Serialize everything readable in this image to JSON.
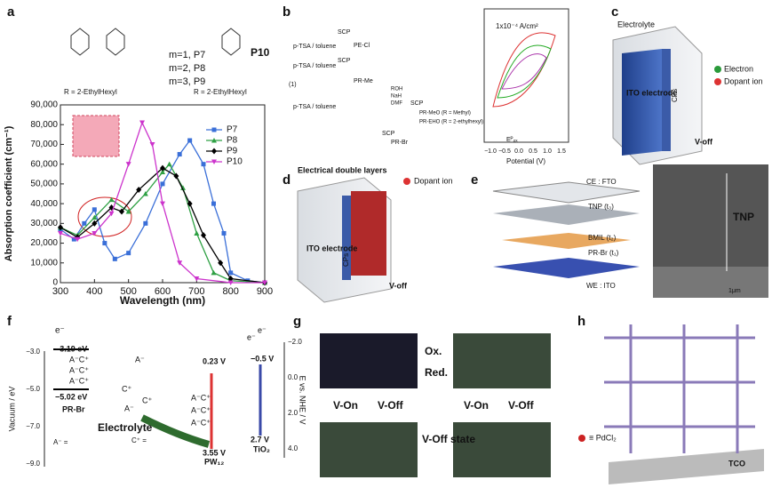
{
  "chart_data": {
    "type": "line",
    "x_label": "Wavelength (nm)",
    "y_label": "Absorption coefficient (cm⁻¹)",
    "annotations": [
      "R = 2-EthylHexyl",
      "R = 2-EthylHexyl",
      "m=1, P7",
      "m=2, P8",
      "m=3, P9",
      "P10",
      "a"
    ],
    "xlim": [
      300,
      900
    ],
    "xticks": [
      300,
      400,
      500,
      600,
      700,
      800,
      900
    ],
    "ylim": [
      0,
      90000
    ],
    "yticks": [
      0,
      {
        "value": 10000,
        "label": "10,000"
      },
      {
        "value": 20000,
        "label": "20,000"
      },
      {
        "value": 30000,
        "label": "30,000"
      },
      {
        "value": 40000,
        "label": "40,000"
      },
      {
        "value": 50000,
        "label": "50,000"
      },
      {
        "value": 60000,
        "label": "60,000"
      },
      {
        "value": 70000,
        "label": "70,000"
      },
      {
        "value": 80000,
        "label": "80,000"
      },
      {
        "value": 90000,
        "label": "90,000"
      }
    ],
    "legend": "upper right",
    "series": [
      {
        "name": "P7",
        "color": "#3a6fd8",
        "marker": "square",
        "x": [
          300,
          340,
          370,
          400,
          430,
          460,
          500,
          550,
          600,
          650,
          680,
          720,
          750,
          780,
          800,
          850,
          900
        ],
        "values": [
          27000,
          22000,
          30000,
          37000,
          20000,
          12000,
          15000,
          30000,
          50000,
          65000,
          72000,
          60000,
          40000,
          25000,
          5000,
          1000,
          0
        ]
      },
      {
        "name": "P8",
        "color": "#2ea043",
        "marker": "triangle",
        "x": [
          300,
          350,
          400,
          450,
          500,
          550,
          600,
          620,
          660,
          700,
          750,
          800,
          900
        ],
        "values": [
          28000,
          24000,
          33000,
          42000,
          36000,
          45000,
          56000,
          60000,
          48000,
          25000,
          5000,
          1000,
          0
        ]
      },
      {
        "name": "P9",
        "color": "#000000",
        "marker": "diamond",
        "x": [
          300,
          350,
          400,
          450,
          480,
          530,
          600,
          640,
          680,
          720,
          770,
          800,
          900
        ],
        "values": [
          28000,
          23000,
          30000,
          38000,
          36000,
          47000,
          58000,
          54000,
          40000,
          24000,
          10000,
          2000,
          0
        ]
      },
      {
        "name": "P10",
        "color": "#cc33cc",
        "marker": "triangle-down",
        "x": [
          300,
          350,
          400,
          450,
          500,
          540,
          570,
          600,
          650,
          700,
          800,
          900
        ],
        "values": [
          25000,
          22000,
          25000,
          35000,
          60000,
          81000,
          70000,
          40000,
          10000,
          2000,
          0,
          0
        ]
      }
    ]
  },
  "panels": {
    "b": {
      "label": "b",
      "texts": [
        "p-TSA / toluene",
        "p-TSA / toluene",
        "p-TSA / toluene",
        "SCP",
        "SCP",
        "SCP",
        "SCP",
        "(1)",
        "PE-Cl",
        "PR-Me",
        "ROH",
        "NaH",
        "DMF",
        "PR-MeO (R = Methyl)",
        "PR-EHO (R = 2-ethylhexyl)",
        "PR-Br"
      ],
      "cv": {
        "scale": "1x10⁻⁴ A/cm²",
        "x_label": "Potential (V)",
        "ticks": [
          "−1.0",
          "−0.5",
          "0.0",
          "0.5",
          "1.0",
          "1.5"
        ],
        "marker": "Eᴾₒₓ"
      }
    },
    "c": {
      "label": "c",
      "texts": [
        "Electrolyte",
        "ITO electrode",
        "CPs",
        "Electron",
        "Dopant ion",
        "V-off"
      ]
    },
    "d": {
      "label": "d",
      "texts": [
        "Electrical double layers",
        "Dopant ion",
        "ITO electrode",
        "CPs",
        "V-off"
      ]
    },
    "e": {
      "label": "e",
      "texts": [
        "CE : FTO",
        "TNP (t₃)",
        "BMIL (t₂)",
        "PR-Br (t₁)",
        "WE : ITO",
        "TNP",
        "1μm"
      ]
    },
    "f": {
      "label": "f",
      "texts": [
        "e⁻",
        "−3.19 eV",
        "−5.02 eV",
        "PR-Br",
        "A⁻C⁺",
        "A⁻C⁺",
        "A⁻C⁺",
        "A⁻",
        "C⁺",
        "A⁻",
        "C⁺",
        "Electrolyte",
        "0.23 V",
        "A⁻C⁺",
        "A⁻C⁺",
        "A⁻C⁺",
        "3.55 V",
        "PW₁₂",
        "−0.5 V",
        "2.7 V",
        "TiO₂",
        "e⁻",
        "e⁻",
        "C⁺ =",
        "A⁻ ="
      ],
      "left_axis": {
        "label": "Vacuum / eV",
        "ticks": [
          "−3.0",
          "−5.0",
          "−7.0",
          "−9.0"
        ]
      },
      "right_axis": {
        "label": "E vs. NHE / V",
        "ticks": [
          "−2.0",
          "0.0",
          "2.0",
          "4.0"
        ]
      }
    },
    "g": {
      "label": "g",
      "texts": [
        "Ox.",
        "Red.",
        "V-On",
        "V-Off",
        "V-On",
        "V-Off",
        "V-Off state"
      ]
    },
    "h": {
      "label": "h",
      "texts": [
        "≡ PdCl₂",
        "TCO"
      ]
    }
  }
}
